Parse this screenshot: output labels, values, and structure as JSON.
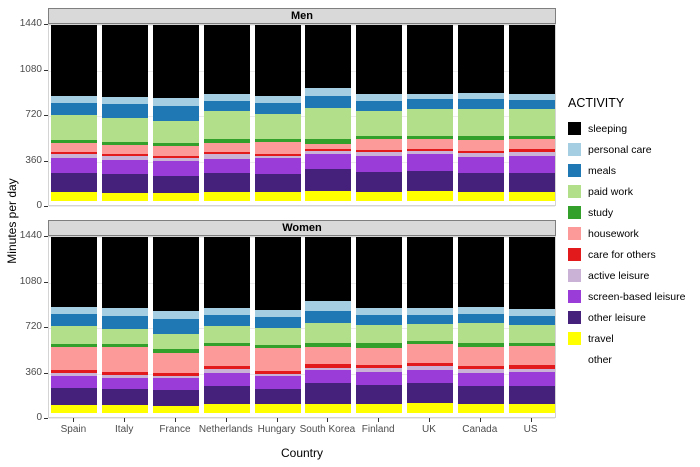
{
  "chart_data": {
    "type": "bar",
    "stacked": true,
    "facets": [
      "Men",
      "Women"
    ],
    "title": "",
    "xlabel": "Country",
    "ylabel": "Minutes per day",
    "legend_title": "ACTIVITY",
    "ylim": [
      0,
      1440
    ],
    "yticks": [
      0,
      360,
      720,
      1080,
      1440
    ],
    "grid": true,
    "legend_position": "right",
    "categories": [
      "Spain",
      "Italy",
      "France",
      "Netherlands",
      "Hungary",
      "South Korea",
      "Finland",
      "UK",
      "Canada",
      "US"
    ],
    "activities": [
      {
        "name": "sleeping",
        "color": "#000000"
      },
      {
        "name": "personal care",
        "color": "#a6cee3"
      },
      {
        "name": "meals",
        "color": "#1f78b4"
      },
      {
        "name": "paid work",
        "color": "#b2df8a"
      },
      {
        "name": "study",
        "color": "#33a02c"
      },
      {
        "name": "housework",
        "color": "#fb9a99"
      },
      {
        "name": "care for others",
        "color": "#e31a1c"
      },
      {
        "name": "active leisure",
        "color": "#cab2d6"
      },
      {
        "name": "screen-based leisure",
        "color": "#9a3cd8"
      },
      {
        "name": "other leisure",
        "color": "#45217c"
      },
      {
        "name": "travel",
        "color": "#ffff00"
      },
      {
        "name": "other",
        "color": "#ffffff"
      }
    ],
    "values_note": "minutes per day per activity, order matches activities[]",
    "values": {
      "Men": [
        [
          570,
          50,
          100,
          200,
          25,
          70,
          15,
          30,
          120,
          155,
          75,
          30
        ],
        [
          575,
          55,
          110,
          195,
          25,
          75,
          15,
          30,
          110,
          150,
          70,
          30
        ],
        [
          585,
          60,
          120,
          180,
          25,
          80,
          15,
          25,
          115,
          140,
          65,
          30
        ],
        [
          555,
          50,
          85,
          220,
          30,
          80,
          15,
          35,
          115,
          155,
          70,
          30
        ],
        [
          570,
          55,
          90,
          200,
          20,
          95,
          15,
          20,
          130,
          145,
          70,
          30
        ],
        [
          500,
          70,
          95,
          250,
          35,
          45,
          10,
          25,
          120,
          180,
          80,
          30
        ],
        [
          555,
          50,
          80,
          200,
          30,
          85,
          15,
          35,
          125,
          160,
          75,
          30
        ],
        [
          550,
          45,
          80,
          210,
          25,
          80,
          15,
          30,
          130,
          165,
          80,
          30
        ],
        [
          545,
          50,
          75,
          220,
          30,
          85,
          20,
          35,
          125,
          150,
          75,
          30
        ],
        [
          555,
          45,
          70,
          215,
          25,
          85,
          20,
          30,
          140,
          150,
          75,
          30
        ]
      ],
      "Women": [
        [
          560,
          55,
          100,
          140,
          25,
          180,
          25,
          25,
          100,
          130,
          70,
          30
        ],
        [
          570,
          60,
          105,
          120,
          25,
          200,
          25,
          20,
          90,
          130,
          65,
          30
        ],
        [
          595,
          65,
          115,
          125,
          25,
          160,
          25,
          20,
          95,
          125,
          60,
          30
        ],
        [
          570,
          55,
          85,
          135,
          25,
          160,
          30,
          30,
          100,
          150,
          70,
          30
        ],
        [
          585,
          55,
          85,
          140,
          20,
          185,
          25,
          15,
          105,
          125,
          70,
          30
        ],
        [
          515,
          80,
          95,
          160,
          30,
          140,
          25,
          20,
          105,
          170,
          70,
          30
        ],
        [
          570,
          55,
          80,
          145,
          35,
          140,
          25,
          30,
          105,
          155,
          70,
          30
        ],
        [
          565,
          55,
          75,
          135,
          25,
          150,
          30,
          25,
          110,
          160,
          80,
          30
        ],
        [
          560,
          55,
          75,
          160,
          30,
          150,
          30,
          30,
          105,
          140,
          75,
          30
        ],
        [
          575,
          55,
          70,
          150,
          25,
          150,
          30,
          25,
          115,
          140,
          75,
          30
        ]
      ]
    }
  }
}
